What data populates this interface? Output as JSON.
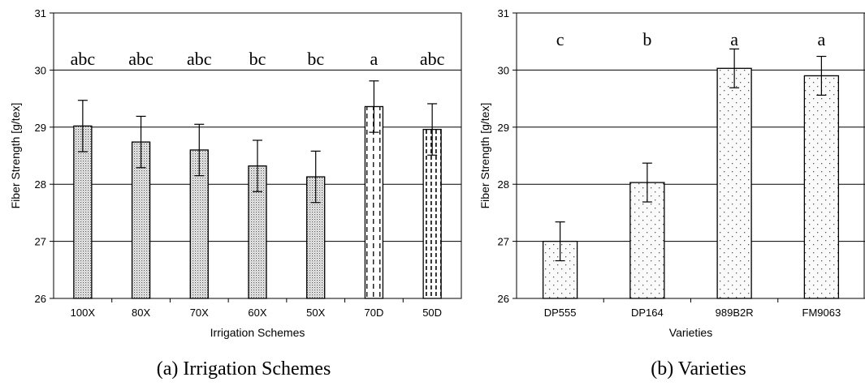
{
  "chart_data": [
    {
      "type": "bar",
      "caption": "(a) Irrigation Schemes",
      "xlabel": "Irrigation Schemes",
      "ylabel": "Fiber Strength [g/tex]",
      "ylim": [
        26,
        31
      ],
      "yticks": [
        "26",
        "27",
        "28",
        "29",
        "30",
        "31"
      ],
      "grid": true,
      "categories": [
        "100X",
        "80X",
        "70X",
        "60X",
        "50X",
        "70D",
        "50D"
      ],
      "values": [
        29.02,
        28.74,
        28.6,
        28.32,
        28.13,
        29.36,
        28.96
      ],
      "errors": [
        0.45,
        0.45,
        0.45,
        0.45,
        0.45,
        0.45,
        0.45
      ],
      "letters": [
        "abc",
        "abc",
        "abc",
        "bc",
        "bc",
        "a",
        "abc"
      ],
      "patterns": [
        "dense-dots",
        "dense-dots",
        "dense-dots",
        "dense-dots",
        "dense-dots",
        "dashes",
        "dashes-dense"
      ]
    },
    {
      "type": "bar",
      "caption": "(b) Varieties",
      "xlabel": "Varieties",
      "ylabel": "Fiber Strength [g/tex]",
      "ylim": [
        26,
        31
      ],
      "yticks": [
        "26",
        "27",
        "28",
        "29",
        "30",
        "31"
      ],
      "grid": true,
      "categories": [
        "DP555",
        "DP164",
        "989B2R",
        "FM9063"
      ],
      "values": [
        27.0,
        28.03,
        30.03,
        29.9
      ],
      "errors": [
        0.34,
        0.34,
        0.34,
        0.34
      ],
      "letters": [
        "c",
        "b",
        "a",
        "a"
      ],
      "patterns": [
        "sparse-dots",
        "sparse-dots",
        "sparse-dots",
        "sparse-dots"
      ]
    }
  ]
}
